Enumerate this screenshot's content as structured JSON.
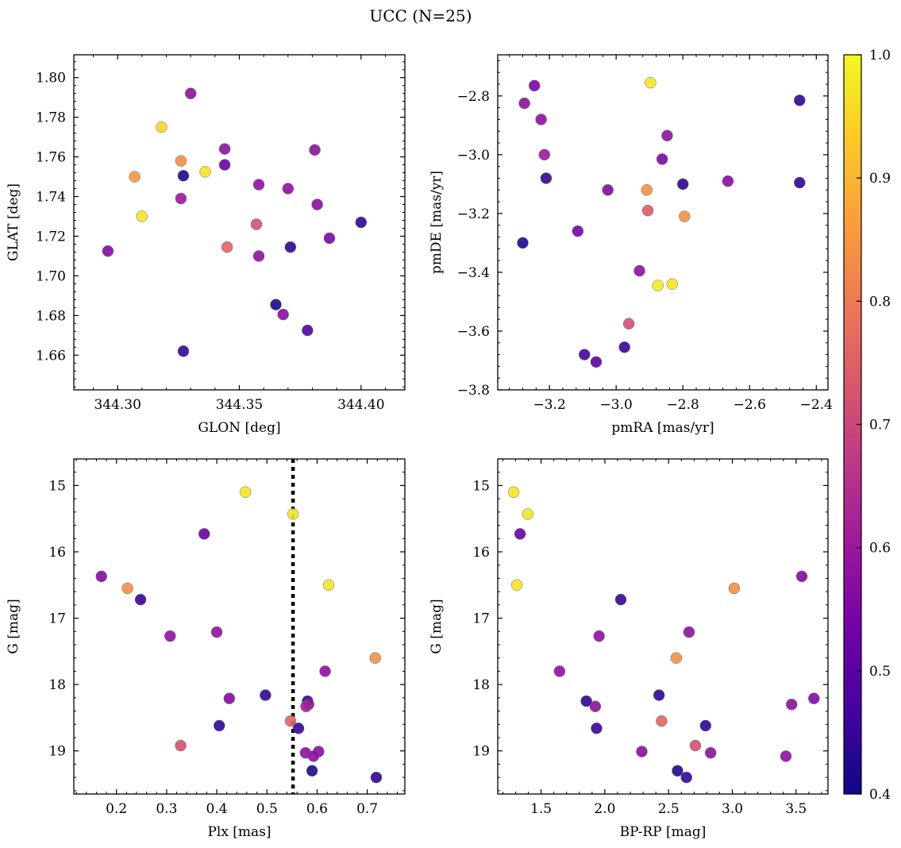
{
  "figure": {
    "title": "UCC (N=25)",
    "colorbar": {
      "range": [
        0.4,
        1.0
      ],
      "ticks": [
        0.4,
        0.5,
        0.6,
        0.7,
        0.8,
        0.9,
        1.0
      ],
      "tick_labels": [
        "0.4",
        "0.5",
        "0.6",
        "0.7",
        "0.8",
        "0.9",
        "1.0"
      ],
      "colormap": "plasma",
      "stops": [
        "#0d0887",
        "#46039f",
        "#7201a8",
        "#9c179e",
        "#bd3786",
        "#d8576b",
        "#ed7953",
        "#fb9f3a",
        "#fdca26",
        "#f0f921"
      ]
    }
  },
  "chart_data": [
    {
      "type": "scatter",
      "xlabel": "GLON [deg]",
      "ylabel": "GLAT [deg]",
      "xlim": [
        344.282,
        344.418
      ],
      "ylim": [
        1.6425,
        1.8115
      ],
      "xticks": [
        344.3,
        344.35,
        344.4
      ],
      "xtick_labels": [
        "344.30",
        "344.35",
        "344.40"
      ],
      "yticks": [
        1.66,
        1.68,
        1.7,
        1.72,
        1.74,
        1.76,
        1.78,
        1.8
      ],
      "ytick_labels": [
        "1.66",
        "1.68",
        "1.70",
        "1.72",
        "1.74",
        "1.76",
        "1.78",
        "1.80"
      ],
      "points": [
        {
          "x": 344.296,
          "y": 1.7125,
          "c": 0.56
        },
        {
          "x": 344.307,
          "y": 1.75,
          "c": 0.85
        },
        {
          "x": 344.31,
          "y": 1.73,
          "c": 0.97
        },
        {
          "x": 344.318,
          "y": 1.775,
          "c": 0.95
        },
        {
          "x": 344.326,
          "y": 1.758,
          "c": 0.84
        },
        {
          "x": 344.327,
          "y": 1.7505,
          "c": 0.42
        },
        {
          "x": 344.326,
          "y": 1.739,
          "c": 0.6
        },
        {
          "x": 344.327,
          "y": 1.662,
          "c": 0.45
        },
        {
          "x": 344.33,
          "y": 1.792,
          "c": 0.58
        },
        {
          "x": 344.336,
          "y": 1.7525,
          "c": 0.97
        },
        {
          "x": 344.344,
          "y": 1.764,
          "c": 0.58
        },
        {
          "x": 344.344,
          "y": 1.756,
          "c": 0.52
        },
        {
          "x": 344.345,
          "y": 1.7145,
          "c": 0.76
        },
        {
          "x": 344.357,
          "y": 1.726,
          "c": 0.72
        },
        {
          "x": 344.358,
          "y": 1.746,
          "c": 0.58
        },
        {
          "x": 344.358,
          "y": 1.71,
          "c": 0.58
        },
        {
          "x": 344.365,
          "y": 1.6855,
          "c": 0.42
        },
        {
          "x": 344.368,
          "y": 1.6805,
          "c": 0.57
        },
        {
          "x": 344.37,
          "y": 1.744,
          "c": 0.58
        },
        {
          "x": 344.371,
          "y": 1.7145,
          "c": 0.44
        },
        {
          "x": 344.378,
          "y": 1.6725,
          "c": 0.48
        },
        {
          "x": 344.381,
          "y": 1.7635,
          "c": 0.58
        },
        {
          "x": 344.382,
          "y": 1.736,
          "c": 0.57
        },
        {
          "x": 344.387,
          "y": 1.719,
          "c": 0.55
        },
        {
          "x": 344.4,
          "y": 1.727,
          "c": 0.44
        }
      ]
    },
    {
      "type": "scatter",
      "xlabel": "pmRA [mas/yr]",
      "ylabel": "pmDE [mas/yr]",
      "xlim": [
        -3.355,
        -2.365
      ],
      "ylim": [
        -3.8,
        -2.66
      ],
      "xticks": [
        -3.2,
        -3.0,
        -2.8,
        -2.6,
        -2.4
      ],
      "xtick_labels": [
        "−3.2",
        "−3.0",
        "−2.8",
        "−2.6",
        "−2.4"
      ],
      "yticks": [
        -3.8,
        -3.6,
        -3.4,
        -3.2,
        -3.0,
        -2.8
      ],
      "ytick_labels": [
        "−3.8",
        "−3.6",
        "−3.4",
        "−3.2",
        "−3.0",
        "−2.8"
      ],
      "points": [
        {
          "x": -3.275,
          "y": -2.825,
          "c": 0.58
        },
        {
          "x": -3.245,
          "y": -2.765,
          "c": 0.55
        },
        {
          "x": -3.225,
          "y": -2.88,
          "c": 0.58
        },
        {
          "x": -3.215,
          "y": -3.0,
          "c": 0.6
        },
        {
          "x": -3.21,
          "y": -3.08,
          "c": 0.45
        },
        {
          "x": -3.28,
          "y": -3.3,
          "c": 0.42
        },
        {
          "x": -3.115,
          "y": -3.26,
          "c": 0.54
        },
        {
          "x": -3.095,
          "y": -3.68,
          "c": 0.46
        },
        {
          "x": -3.06,
          "y": -3.705,
          "c": 0.5
        },
        {
          "x": -3.025,
          "y": -3.12,
          "c": 0.56
        },
        {
          "x": -2.975,
          "y": -3.655,
          "c": 0.45
        },
        {
          "x": -2.962,
          "y": -3.575,
          "c": 0.72
        },
        {
          "x": -2.93,
          "y": -3.395,
          "c": 0.58
        },
        {
          "x": -2.908,
          "y": -3.12,
          "c": 0.84
        },
        {
          "x": -2.905,
          "y": -3.19,
          "c": 0.74
        },
        {
          "x": -2.897,
          "y": -2.755,
          "c": 0.97
        },
        {
          "x": -2.875,
          "y": -3.445,
          "c": 0.98
        },
        {
          "x": -2.862,
          "y": -3.015,
          "c": 0.55
        },
        {
          "x": -2.847,
          "y": -2.935,
          "c": 0.58
        },
        {
          "x": -2.832,
          "y": -3.44,
          "c": 0.97
        },
        {
          "x": -2.8,
          "y": -3.1,
          "c": 0.44
        },
        {
          "x": -2.795,
          "y": -3.21,
          "c": 0.84
        },
        {
          "x": -2.665,
          "y": -3.09,
          "c": 0.57
        },
        {
          "x": -2.45,
          "y": -2.815,
          "c": 0.44
        },
        {
          "x": -2.45,
          "y": -3.095,
          "c": 0.44
        }
      ]
    },
    {
      "type": "scatter",
      "xlabel": "Plx [mas]",
      "ylabel": "G [mag]",
      "xlim": [
        0.115,
        0.775
      ],
      "ylim": [
        19.65,
        14.6
      ],
      "xticks": [
        0.2,
        0.3,
        0.4,
        0.5,
        0.6,
        0.7
      ],
      "xtick_labels": [
        "0.2",
        "0.3",
        "0.4",
        "0.5",
        "0.6",
        "0.7"
      ],
      "yticks": [
        15,
        16,
        17,
        18,
        19
      ],
      "ytick_labels": [
        "15",
        "16",
        "17",
        "18",
        "19"
      ],
      "vline": 0.552,
      "points": [
        {
          "x": 0.17,
          "y": 16.37,
          "c": 0.56
        },
        {
          "x": 0.222,
          "y": 16.55,
          "c": 0.84
        },
        {
          "x": 0.248,
          "y": 16.72,
          "c": 0.45
        },
        {
          "x": 0.307,
          "y": 17.27,
          "c": 0.58
        },
        {
          "x": 0.328,
          "y": 18.92,
          "c": 0.72
        },
        {
          "x": 0.375,
          "y": 15.73,
          "c": 0.52
        },
        {
          "x": 0.4,
          "y": 17.21,
          "c": 0.58
        },
        {
          "x": 0.405,
          "y": 18.62,
          "c": 0.44
        },
        {
          "x": 0.425,
          "y": 18.21,
          "c": 0.56
        },
        {
          "x": 0.457,
          "y": 15.1,
          "c": 0.97
        },
        {
          "x": 0.497,
          "y": 18.16,
          "c": 0.44
        },
        {
          "x": 0.547,
          "y": 18.55,
          "c": 0.76
        },
        {
          "x": 0.552,
          "y": 15.43,
          "c": 0.97
        },
        {
          "x": 0.563,
          "y": 18.66,
          "c": 0.45
        },
        {
          "x": 0.577,
          "y": 19.03,
          "c": 0.58
        },
        {
          "x": 0.578,
          "y": 18.33,
          "c": 0.62
        },
        {
          "x": 0.581,
          "y": 18.25,
          "c": 0.44
        },
        {
          "x": 0.583,
          "y": 18.3,
          "c": 0.58
        },
        {
          "x": 0.59,
          "y": 19.3,
          "c": 0.42
        },
        {
          "x": 0.593,
          "y": 19.08,
          "c": 0.58
        },
        {
          "x": 0.603,
          "y": 19.01,
          "c": 0.57
        },
        {
          "x": 0.616,
          "y": 17.8,
          "c": 0.58
        },
        {
          "x": 0.623,
          "y": 16.5,
          "c": 0.97
        },
        {
          "x": 0.716,
          "y": 17.6,
          "c": 0.84
        },
        {
          "x": 0.718,
          "y": 19.4,
          "c": 0.44
        }
      ]
    },
    {
      "type": "scatter",
      "xlabel": "BP-RP [mag]",
      "ylabel": "G [mag]",
      "xlim": [
        1.16,
        3.75
      ],
      "ylim": [
        19.65,
        14.6
      ],
      "xticks": [
        1.5,
        2.0,
        2.5,
        3.0,
        3.5
      ],
      "xtick_labels": [
        "1.5",
        "2.0",
        "2.5",
        "3.0",
        "3.5"
      ],
      "yticks": [
        15,
        16,
        17,
        18,
        19
      ],
      "ytick_labels": [
        "15",
        "16",
        "17",
        "18",
        "19"
      ],
      "points": [
        {
          "x": 1.285,
          "y": 15.1,
          "c": 0.97
        },
        {
          "x": 1.31,
          "y": 16.5,
          "c": 0.97
        },
        {
          "x": 1.335,
          "y": 15.73,
          "c": 0.52
        },
        {
          "x": 1.395,
          "y": 15.43,
          "c": 0.97
        },
        {
          "x": 1.645,
          "y": 17.8,
          "c": 0.58
        },
        {
          "x": 1.855,
          "y": 18.25,
          "c": 0.44
        },
        {
          "x": 1.925,
          "y": 18.33,
          "c": 0.58
        },
        {
          "x": 1.935,
          "y": 18.66,
          "c": 0.45
        },
        {
          "x": 1.955,
          "y": 17.27,
          "c": 0.58
        },
        {
          "x": 2.125,
          "y": 16.72,
          "c": 0.45
        },
        {
          "x": 2.29,
          "y": 19.01,
          "c": 0.57
        },
        {
          "x": 2.425,
          "y": 18.16,
          "c": 0.44
        },
        {
          "x": 2.445,
          "y": 18.55,
          "c": 0.76
        },
        {
          "x": 2.56,
          "y": 17.6,
          "c": 0.84
        },
        {
          "x": 2.57,
          "y": 19.3,
          "c": 0.42
        },
        {
          "x": 2.64,
          "y": 19.4,
          "c": 0.44
        },
        {
          "x": 2.66,
          "y": 17.21,
          "c": 0.58
        },
        {
          "x": 2.71,
          "y": 18.92,
          "c": 0.72
        },
        {
          "x": 2.79,
          "y": 18.62,
          "c": 0.44
        },
        {
          "x": 2.83,
          "y": 19.03,
          "c": 0.58
        },
        {
          "x": 3.015,
          "y": 16.55,
          "c": 0.84
        },
        {
          "x": 3.42,
          "y": 19.08,
          "c": 0.58
        },
        {
          "x": 3.465,
          "y": 18.3,
          "c": 0.58
        },
        {
          "x": 3.545,
          "y": 16.37,
          "c": 0.56
        },
        {
          "x": 3.64,
          "y": 18.21,
          "c": 0.56
        }
      ]
    }
  ]
}
